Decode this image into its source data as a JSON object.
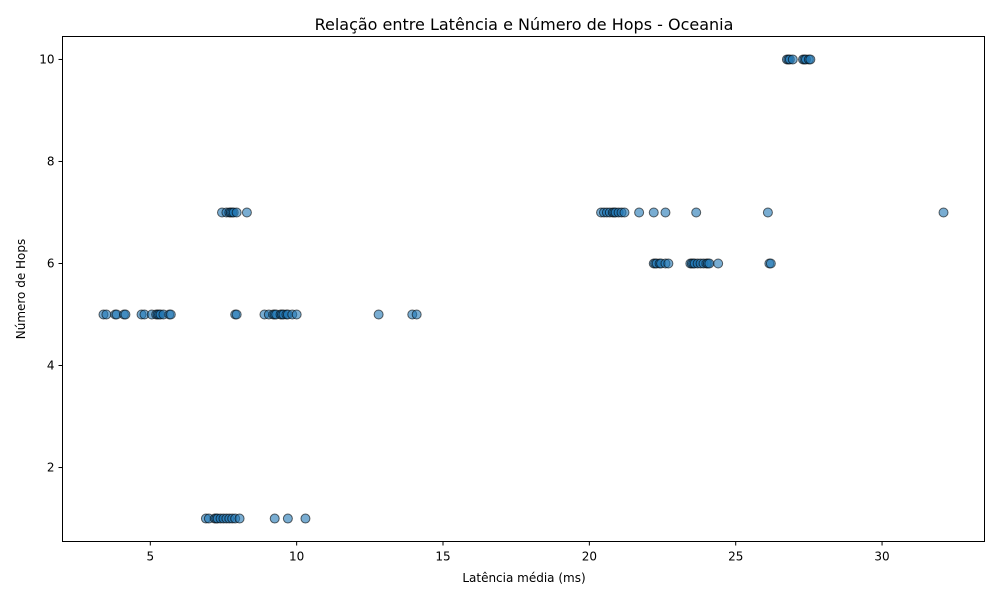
{
  "chart_data": {
    "type": "scatter",
    "title": "Relação entre Latência e Número de Hops - Oceania",
    "xlabel": "Latência média (ms)",
    "ylabel": "Número de Hops",
    "xlim": [
      2,
      33.5
    ],
    "ylim": [
      0.55,
      10.45
    ],
    "xticks": [
      5,
      10,
      15,
      20,
      25,
      30
    ],
    "yticks": [
      2,
      4,
      6,
      8,
      10
    ],
    "grid": false,
    "legend": "none",
    "point_color": "#1f77b4",
    "points": [
      [
        6.9,
        1
      ],
      [
        7.0,
        1
      ],
      [
        7.2,
        1
      ],
      [
        7.25,
        1
      ],
      [
        7.3,
        1
      ],
      [
        7.4,
        1
      ],
      [
        7.5,
        1
      ],
      [
        7.6,
        1
      ],
      [
        7.7,
        1
      ],
      [
        7.8,
        1
      ],
      [
        7.9,
        1
      ],
      [
        8.05,
        1
      ],
      [
        9.25,
        1
      ],
      [
        9.7,
        1
      ],
      [
        10.3,
        1
      ],
      [
        3.4,
        5
      ],
      [
        3.5,
        5
      ],
      [
        3.8,
        5
      ],
      [
        3.85,
        5
      ],
      [
        4.1,
        5
      ],
      [
        4.15,
        5
      ],
      [
        4.7,
        5
      ],
      [
        4.8,
        5
      ],
      [
        5.05,
        5
      ],
      [
        5.2,
        5
      ],
      [
        5.25,
        5
      ],
      [
        5.3,
        5
      ],
      [
        5.35,
        5
      ],
      [
        5.45,
        5
      ],
      [
        5.65,
        5
      ],
      [
        5.7,
        5
      ],
      [
        7.9,
        5
      ],
      [
        7.95,
        5
      ],
      [
        8.9,
        5
      ],
      [
        9.05,
        5
      ],
      [
        9.2,
        5
      ],
      [
        9.25,
        5
      ],
      [
        9.3,
        5
      ],
      [
        9.45,
        5
      ],
      [
        9.5,
        5
      ],
      [
        9.55,
        5
      ],
      [
        9.65,
        5
      ],
      [
        9.7,
        5
      ],
      [
        9.85,
        5
      ],
      [
        10.0,
        5
      ],
      [
        12.8,
        5
      ],
      [
        13.95,
        5
      ],
      [
        14.1,
        5
      ],
      [
        22.2,
        6
      ],
      [
        22.25,
        6
      ],
      [
        22.3,
        6
      ],
      [
        22.4,
        6
      ],
      [
        22.45,
        6
      ],
      [
        22.6,
        6
      ],
      [
        22.7,
        6
      ],
      [
        23.45,
        6
      ],
      [
        23.5,
        6
      ],
      [
        23.55,
        6
      ],
      [
        23.6,
        6
      ],
      [
        23.7,
        6
      ],
      [
        23.8,
        6
      ],
      [
        23.9,
        6
      ],
      [
        24.0,
        6
      ],
      [
        24.05,
        6
      ],
      [
        24.1,
        6
      ],
      [
        24.4,
        6
      ],
      [
        26.15,
        6
      ],
      [
        26.2,
        6
      ],
      [
        7.45,
        7
      ],
      [
        7.6,
        7
      ],
      [
        7.7,
        7
      ],
      [
        7.75,
        7
      ],
      [
        7.8,
        7
      ],
      [
        7.85,
        7
      ],
      [
        7.95,
        7
      ],
      [
        8.3,
        7
      ],
      [
        20.4,
        7
      ],
      [
        20.5,
        7
      ],
      [
        20.6,
        7
      ],
      [
        20.7,
        7
      ],
      [
        20.8,
        7
      ],
      [
        20.85,
        7
      ],
      [
        20.9,
        7
      ],
      [
        21.0,
        7
      ],
      [
        21.1,
        7
      ],
      [
        21.2,
        7
      ],
      [
        21.7,
        7
      ],
      [
        22.2,
        7
      ],
      [
        22.6,
        7
      ],
      [
        23.65,
        7
      ],
      [
        26.1,
        7
      ],
      [
        32.1,
        7
      ],
      [
        26.75,
        10
      ],
      [
        26.8,
        10
      ],
      [
        26.85,
        10
      ],
      [
        26.95,
        10
      ],
      [
        27.3,
        10
      ],
      [
        27.35,
        10
      ],
      [
        27.4,
        10
      ],
      [
        27.5,
        10
      ],
      [
        27.55,
        10
      ]
    ]
  }
}
